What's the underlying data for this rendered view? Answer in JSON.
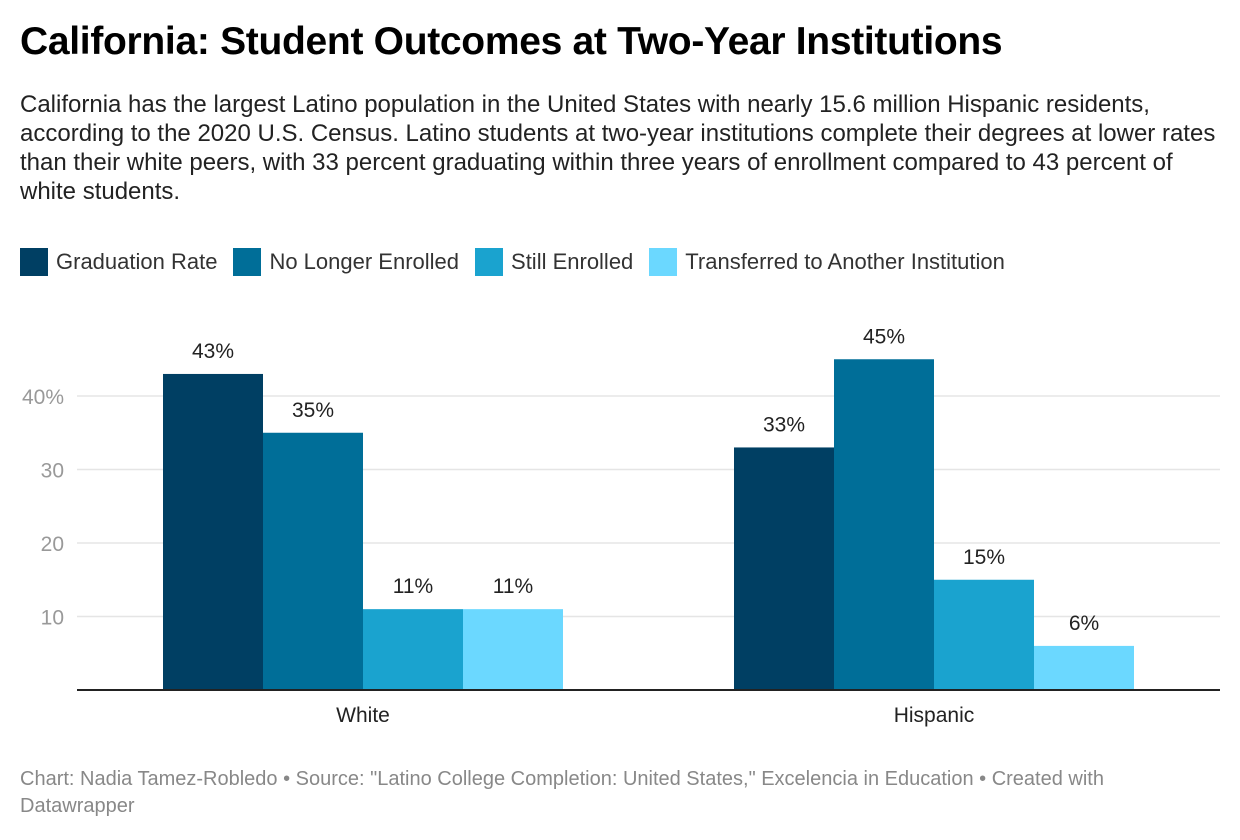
{
  "title": "California: Student Outcomes at Two-Year Institutions",
  "subtitle": "California has the largest Latino population in the United States with nearly 15.6 million Hispanic residents, according to the 2020 U.S. Census. Latino students at two-year institutions complete their degrees at lower rates than their white peers, with 33 percent graduating within three years of enrollment compared to 43 percent of white students.",
  "footer": "Chart: Nadia Tamez-Robledo • Source: \"Latino College Completion: United States,\" Excelencia in Education • Created with Datawrapper",
  "chart_data": {
    "type": "bar",
    "title": "California: Student Outcomes at Two-Year Institutions",
    "categories": [
      "White",
      "Hispanic"
    ],
    "series": [
      {
        "name": "Graduation Rate",
        "color": "#003f63",
        "values": [
          43,
          33
        ]
      },
      {
        "name": "No Longer Enrolled",
        "color": "#006e98",
        "values": [
          35,
          45
        ]
      },
      {
        "name": "Still Enrolled",
        "color": "#1aa3cf",
        "values": [
          11,
          15
        ]
      },
      {
        "name": "Transferred to Another Institution",
        "color": "#6bd8ff",
        "values": [
          11,
          6
        ]
      }
    ],
    "data_labels": [
      [
        "43%",
        "33%"
      ],
      [
        "35%",
        "45%"
      ],
      [
        "11%",
        "15%"
      ],
      [
        "11%",
        "6%"
      ]
    ],
    "yticks": [
      {
        "value": 10,
        "label": "10"
      },
      {
        "value": 20,
        "label": "20"
      },
      {
        "value": 30,
        "label": "30"
      },
      {
        "value": 40,
        "label": "40%"
      }
    ],
    "ylim": [
      0,
      45
    ],
    "xlabel": "",
    "ylabel": "",
    "grid": true,
    "legend_position": "top-left"
  }
}
